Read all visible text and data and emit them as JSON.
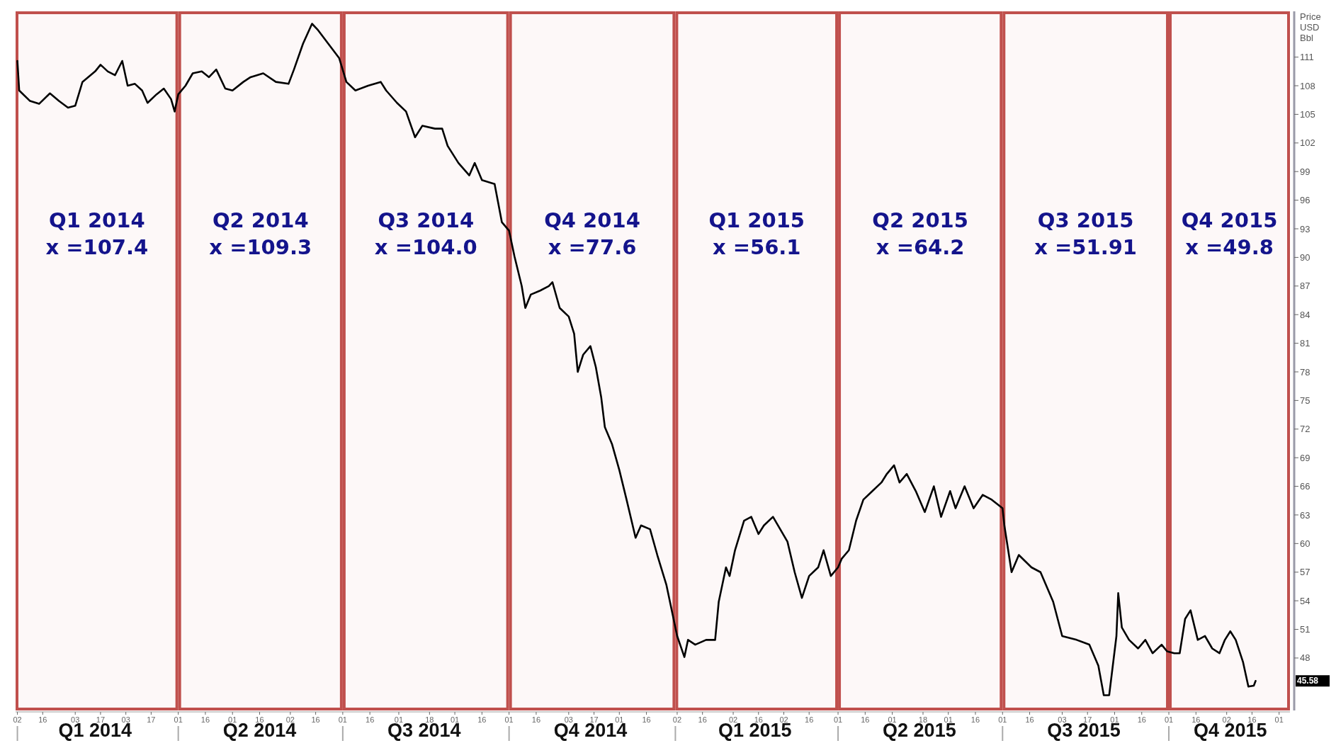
{
  "chart_data": {
    "type": "line",
    "ylabel": "Price USD Bbl",
    "xlim": [
      "2014-01-01",
      "2015-12-07"
    ],
    "ylim": [
      42.5,
      115.8
    ],
    "yticks": [
      48,
      51,
      54,
      57,
      60,
      63,
      66,
      69,
      72,
      75,
      78,
      81,
      84,
      87,
      90,
      93,
      96,
      99,
      102,
      105,
      108,
      111
    ],
    "xticks": [
      {
        "value": "2014-01-02",
        "label": "02"
      },
      {
        "value": "2014-01-16",
        "label": "16"
      },
      {
        "value": "2014-02-03",
        "label": "03"
      },
      {
        "value": "2014-02-17",
        "label": "17"
      },
      {
        "value": "2014-03-03",
        "label": "03"
      },
      {
        "value": "2014-03-17",
        "label": "17"
      },
      {
        "value": "2014-04-01",
        "label": "01"
      },
      {
        "value": "2014-04-16",
        "label": "16"
      },
      {
        "value": "2014-05-01",
        "label": "01"
      },
      {
        "value": "2014-05-16",
        "label": "16"
      },
      {
        "value": "2014-06-02",
        "label": "02"
      },
      {
        "value": "2014-06-16",
        "label": "16"
      },
      {
        "value": "2014-07-01",
        "label": "01"
      },
      {
        "value": "2014-07-16",
        "label": "16"
      },
      {
        "value": "2014-08-01",
        "label": "01"
      },
      {
        "value": "2014-08-18",
        "label": "18"
      },
      {
        "value": "2014-09-01",
        "label": "01"
      },
      {
        "value": "2014-09-16",
        "label": "16"
      },
      {
        "value": "2014-10-01",
        "label": "01"
      },
      {
        "value": "2014-10-16",
        "label": "16"
      },
      {
        "value": "2014-11-03",
        "label": "03"
      },
      {
        "value": "2014-11-17",
        "label": "17"
      },
      {
        "value": "2014-12-01",
        "label": "01"
      },
      {
        "value": "2014-12-16",
        "label": "16"
      },
      {
        "value": "2015-01-02",
        "label": "02"
      },
      {
        "value": "2015-01-16",
        "label": "16"
      },
      {
        "value": "2015-02-02",
        "label": "02"
      },
      {
        "value": "2015-02-16",
        "label": "16"
      },
      {
        "value": "2015-03-02",
        "label": "02"
      },
      {
        "value": "2015-03-16",
        "label": "16"
      },
      {
        "value": "2015-04-01",
        "label": "01"
      },
      {
        "value": "2015-04-16",
        "label": "16"
      },
      {
        "value": "2015-05-01",
        "label": "01"
      },
      {
        "value": "2015-05-18",
        "label": "18"
      },
      {
        "value": "2015-06-01",
        "label": "01"
      },
      {
        "value": "2015-06-16",
        "label": "16"
      },
      {
        "value": "2015-07-01",
        "label": "01"
      },
      {
        "value": "2015-07-16",
        "label": "16"
      },
      {
        "value": "2015-08-03",
        "label": "03"
      },
      {
        "value": "2015-08-17",
        "label": "17"
      },
      {
        "value": "2015-09-01",
        "label": "01"
      },
      {
        "value": "2015-09-16",
        "label": "16"
      },
      {
        "value": "2015-10-01",
        "label": "01"
      },
      {
        "value": "2015-10-16",
        "label": "16"
      },
      {
        "value": "2015-11-02",
        "label": "02"
      },
      {
        "value": "2015-11-16",
        "label": "16"
      },
      {
        "value": "2015-12-01",
        "label": "01"
      }
    ],
    "x2lim": [
      "2014-01-01",
      "2015-12-07"
    ],
    "x2ticks": [
      {
        "value": "2014-01-02",
        "label": null
      },
      {
        "value": "2014-02-14",
        "label": "Q1 2014"
      },
      {
        "value": "2014-04-01",
        "label": null
      },
      {
        "value": "2014-05-16",
        "label": "Q2 2014"
      },
      {
        "value": "2014-07-01",
        "label": null
      },
      {
        "value": "2014-08-15",
        "label": "Q3 2014"
      },
      {
        "value": "2014-10-01",
        "label": null
      },
      {
        "value": "2014-11-15",
        "label": "Q4 2014"
      },
      {
        "value": "2015-01-01",
        "label": null
      },
      {
        "value": "2015-02-14",
        "label": "Q1 2015"
      },
      {
        "value": "2015-04-01",
        "label": null
      },
      {
        "value": "2015-05-16",
        "label": "Q2 2015"
      },
      {
        "value": "2015-07-01",
        "label": null
      },
      {
        "value": "2015-08-15",
        "label": "Q3 2015"
      },
      {
        "value": "2015-10-01",
        "label": null
      },
      {
        "value": "2015-11-04",
        "label": "Q4 2015"
      }
    ],
    "bands": [
      {
        "axis": "x",
        "from": "2014-01-01",
        "to": "2014-04-01",
        "label": "Q1 2014\nx =107.4",
        "color": "#c0504d"
      },
      {
        "axis": "x",
        "from": "2014-04-01",
        "to": "2014-07-01",
        "label": "Q2 2014\nx =109.3",
        "color": "#c0504d"
      },
      {
        "axis": "x",
        "from": "2014-07-01",
        "to": "2014-10-01",
        "label": "Q3 2014\nx =104.0",
        "color": "#c0504d"
      },
      {
        "axis": "x",
        "from": "2014-10-01",
        "to": "2015-01-01",
        "label": "Q4 2014\nx =77.6",
        "color": "#c0504d"
      },
      {
        "axis": "x",
        "from": "2015-01-01",
        "to": "2015-04-01",
        "label": "Q1 2015\nx =56.1",
        "color": "#c0504d"
      },
      {
        "axis": "x",
        "from": "2015-04-01",
        "to": "2015-07-01",
        "label": "Q2 2015\nx =64.2",
        "color": "#c0504d"
      },
      {
        "axis": "x",
        "from": "2015-07-01",
        "to": "2015-10-01",
        "label": "Q3 2015\nx =51.91",
        "color": "#c0504d"
      },
      {
        "axis": "x",
        "from": "2015-10-01",
        "to": "2015-12-07",
        "label": "Q4 2015\nx =49.8",
        "color": "#c0504d"
      }
    ],
    "annotations": [
      "45.58"
    ],
    "series": [
      {
        "color": "#000000",
        "x": [
          "2014-01-02",
          "2014-01-03",
          "2014-01-09",
          "2014-01-14",
          "2014-01-20",
          "2014-01-25",
          "2014-01-30",
          "2014-02-03",
          "2014-02-07",
          "2014-02-14",
          "2014-02-17",
          "2014-02-21",
          "2014-02-25",
          "2014-03-01",
          "2014-03-04",
          "2014-03-08",
          "2014-03-12",
          "2014-03-15",
          "2014-03-20",
          "2014-03-24",
          "2014-03-28",
          "2014-03-30",
          "2014-04-01",
          "2014-04-05",
          "2014-04-09",
          "2014-04-14",
          "2014-04-18",
          "2014-04-22",
          "2014-04-27",
          "2014-05-01",
          "2014-05-07",
          "2014-05-11",
          "2014-05-18",
          "2014-05-25",
          "2014-06-01",
          "2014-06-04",
          "2014-06-09",
          "2014-06-14",
          "2014-06-17",
          "2014-06-23",
          "2014-06-29",
          "2014-07-03",
          "2014-07-08",
          "2014-07-15",
          "2014-07-22",
          "2014-07-25",
          "2014-07-31",
          "2014-08-05",
          "2014-08-10",
          "2014-08-14",
          "2014-08-21",
          "2014-08-25",
          "2014-08-28",
          "2014-09-03",
          "2014-09-09",
          "2014-09-12",
          "2014-09-16",
          "2014-09-23",
          "2014-09-27",
          "2014-10-01",
          "2014-10-04",
          "2014-10-08",
          "2014-10-10",
          "2014-10-13",
          "2014-10-18",
          "2014-10-23",
          "2014-10-25",
          "2014-10-29",
          "2014-11-03",
          "2014-11-06",
          "2014-11-08",
          "2014-11-11",
          "2014-11-15",
          "2014-11-18",
          "2014-11-21",
          "2014-11-23",
          "2014-11-27",
          "2014-12-01",
          "2014-12-05",
          "2014-12-10",
          "2014-12-13",
          "2014-12-18",
          "2014-12-22",
          "2014-12-27",
          "2014-12-31",
          "2015-01-02",
          "2015-01-06",
          "2015-01-08",
          "2015-01-12",
          "2015-01-18",
          "2015-01-23",
          "2015-01-25",
          "2015-01-29",
          "2015-01-31",
          "2015-02-03",
          "2015-02-08",
          "2015-02-12",
          "2015-02-16",
          "2015-02-19",
          "2015-02-24",
          "2015-02-28",
          "2015-03-04",
          "2015-03-08",
          "2015-03-12",
          "2015-03-16",
          "2015-03-21",
          "2015-03-24",
          "2015-03-28",
          "2015-04-01",
          "2015-04-03",
          "2015-04-07",
          "2015-04-11",
          "2015-04-15",
          "2015-04-20",
          "2015-04-25",
          "2015-04-28",
          "2015-05-02",
          "2015-05-05",
          "2015-05-09",
          "2015-05-14",
          "2015-05-19",
          "2015-05-24",
          "2015-05-28",
          "2015-06-02",
          "2015-06-05",
          "2015-06-10",
          "2015-06-15",
          "2015-06-20",
          "2015-06-25",
          "2015-07-01",
          "2015-07-02",
          "2015-07-06",
          "2015-07-10",
          "2015-07-17",
          "2015-07-22",
          "2015-07-29",
          "2015-08-03",
          "2015-08-11",
          "2015-08-18",
          "2015-08-23",
          "2015-08-26",
          "2015-08-29",
          "2015-09-02",
          "2015-09-03",
          "2015-09-05",
          "2015-09-09",
          "2015-09-14",
          "2015-09-18",
          "2015-09-22",
          "2015-09-27",
          "2015-09-30",
          "2015-10-04",
          "2015-10-07",
          "2015-10-10",
          "2015-10-13",
          "2015-10-17",
          "2015-10-21",
          "2015-10-25",
          "2015-10-29",
          "2015-11-01",
          "2015-11-04",
          "2015-11-07",
          "2015-11-11",
          "2015-11-14",
          "2015-11-17",
          "2015-11-18"
        ],
        "values": [
          110.6,
          107.5,
          106.4,
          106.1,
          107.2,
          106.4,
          105.7,
          105.9,
          108.4,
          109.5,
          110.2,
          109.5,
          109.1,
          110.6,
          108.0,
          108.2,
          107.5,
          106.2,
          107.1,
          107.7,
          106.6,
          105.3,
          107.1,
          108.0,
          109.3,
          109.5,
          108.9,
          109.7,
          107.7,
          107.5,
          108.4,
          108.9,
          109.3,
          108.4,
          108.2,
          109.7,
          112.4,
          114.5,
          113.9,
          112.4,
          110.9,
          108.4,
          107.5,
          108.0,
          108.4,
          107.5,
          106.2,
          105.3,
          102.6,
          103.8,
          103.5,
          103.5,
          101.7,
          99.9,
          98.6,
          99.9,
          98.1,
          97.7,
          93.7,
          92.8,
          90.1,
          87.0,
          84.7,
          86.1,
          86.5,
          87.0,
          87.4,
          84.7,
          83.8,
          82.0,
          78.0,
          79.8,
          80.7,
          78.5,
          75.3,
          72.2,
          70.4,
          67.7,
          64.6,
          60.6,
          61.9,
          61.5,
          58.8,
          55.7,
          52.1,
          50.3,
          48.1,
          49.9,
          49.4,
          49.9,
          49.9,
          53.9,
          57.5,
          56.6,
          59.3,
          62.4,
          62.8,
          61.0,
          61.9,
          62.8,
          61.5,
          60.2,
          57.0,
          54.3,
          56.6,
          57.5,
          59.3,
          56.6,
          57.5,
          58.4,
          59.3,
          62.4,
          64.6,
          65.5,
          66.4,
          67.3,
          68.2,
          66.4,
          67.3,
          65.5,
          63.3,
          66.0,
          62.8,
          65.5,
          63.7,
          66.0,
          63.7,
          65.1,
          64.6,
          63.7,
          61.9,
          57.0,
          58.8,
          57.5,
          57.0,
          53.9,
          50.3,
          49.9,
          49.4,
          47.2,
          44.1,
          44.1,
          50.3,
          54.8,
          51.2,
          49.9,
          49.0,
          49.9,
          48.5,
          49.4,
          48.7,
          48.5,
          48.5,
          52.1,
          53.0,
          49.9,
          50.3,
          49.0,
          48.5,
          49.9,
          50.8,
          49.9,
          47.6,
          45.0,
          45.1,
          45.6
        ]
      }
    ]
  }
}
